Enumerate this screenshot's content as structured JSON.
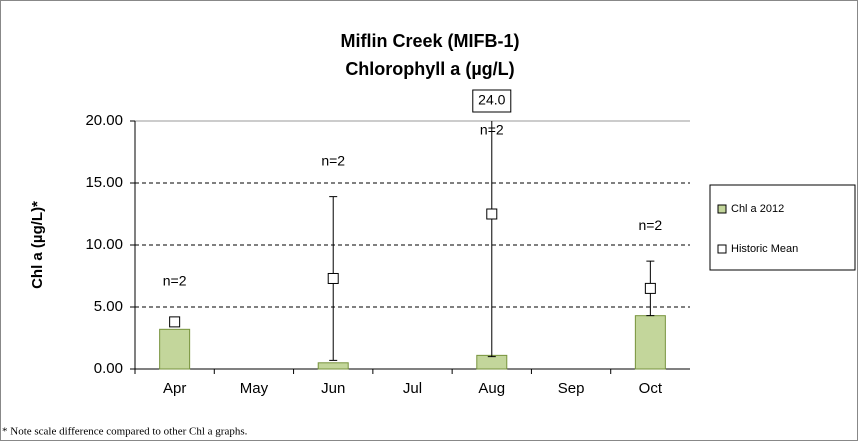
{
  "chart_data": {
    "type": "bar",
    "title": [
      "Miflin Creek (MIFB-1)",
      "Chlorophyll a (µg/L)"
    ],
    "y_label": "Chl a (µg/L)*",
    "footnote": "* Note scale difference compared to other Chl a graphs.",
    "categories": [
      "Apr",
      "May",
      "Jun",
      "Jul",
      "Aug",
      "Sep",
      "Oct"
    ],
    "series": [
      {
        "name": "Chl a 2012",
        "color": "#c3d69b",
        "values": [
          3.2,
          null,
          0.5,
          null,
          1.1,
          null,
          4.3
        ]
      },
      {
        "name": "Historic Mean",
        "color": "#ffffff",
        "values": [
          3.8,
          null,
          7.3,
          null,
          12.5,
          null,
          6.5
        ],
        "errors": [
          null,
          null,
          6.6,
          null,
          11.5,
          null,
          2.2
        ]
      }
    ],
    "n_labels": [
      "n=2",
      null,
      "n=2",
      null,
      "n=2",
      null,
      "n=2"
    ],
    "overflow_label": "24.0",
    "ylim": [
      0,
      20
    ],
    "yticks": [
      {
        "value": 0,
        "label": "0.00"
      },
      {
        "value": 5,
        "label": "5.00"
      },
      {
        "value": 10,
        "label": "10.00"
      },
      {
        "value": 15,
        "label": "15.00"
      },
      {
        "value": 20,
        "label": "20.00"
      }
    ],
    "grid": true
  }
}
